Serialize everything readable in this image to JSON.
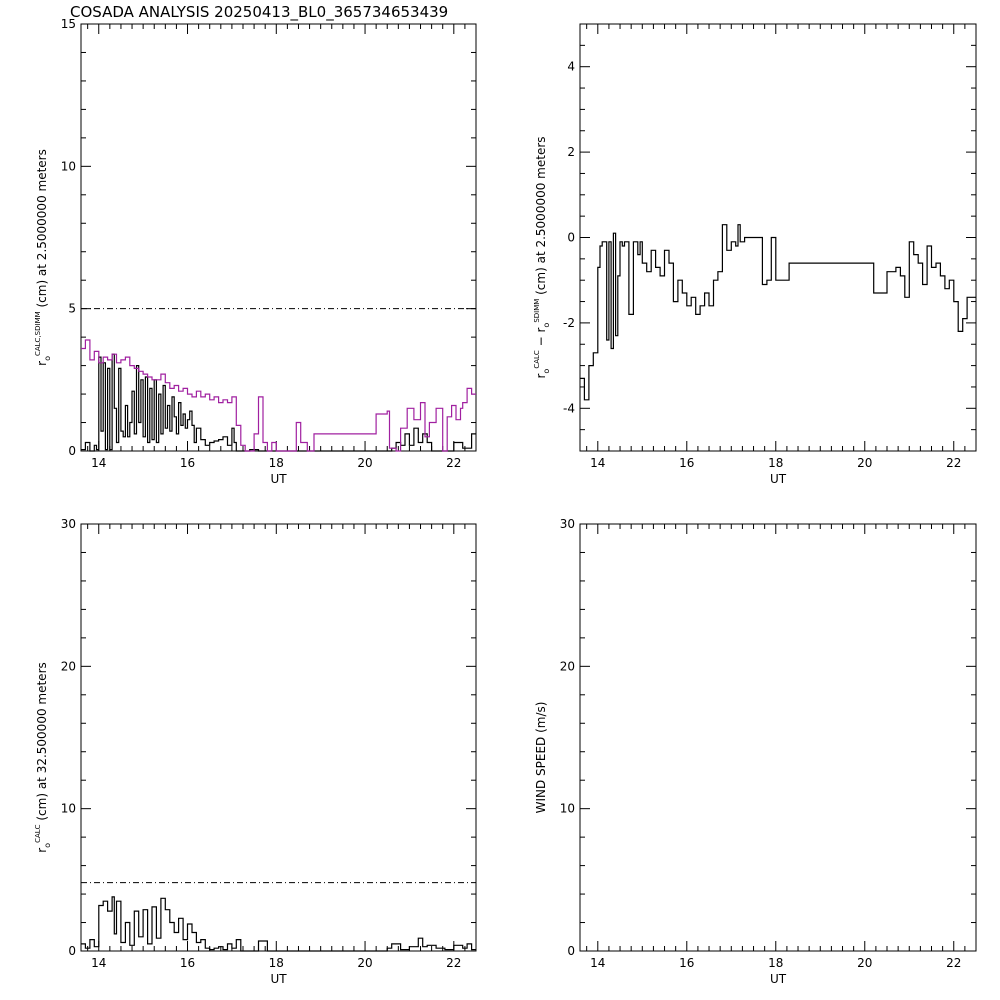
{
  "figure": {
    "title": "COSADA ANALYSIS 20250413_BL0_365734653439"
  },
  "colors": {
    "axis": "#000000",
    "series_black": "#000000",
    "series_magenta": "#a020a0"
  },
  "chart_data": [
    {
      "id": "top-left",
      "type": "line",
      "step": true,
      "xlabel": "UT",
      "ylabel_parts": {
        "r": "r",
        "sub": "o",
        "sup": "CALC,SDIMM",
        "rest": "(cm)  at  2.5000000 meters"
      },
      "xlim": [
        13.6,
        22.5
      ],
      "ylim": [
        0,
        15
      ],
      "xticks": [
        14,
        16,
        18,
        20,
        22
      ],
      "yticks": [
        0,
        5,
        10,
        15
      ],
      "reference_line": {
        "y": 5.0,
        "style": "dash-dot"
      },
      "series": [
        {
          "color": "#000000",
          "x": [
            13.6,
            13.7,
            13.8,
            13.9,
            13.95,
            14.0,
            14.05,
            14.1,
            14.15,
            14.2,
            14.25,
            14.3,
            14.35,
            14.4,
            14.45,
            14.5,
            14.55,
            14.6,
            14.65,
            14.7,
            14.75,
            14.8,
            14.85,
            14.9,
            14.95,
            15.0,
            15.05,
            15.1,
            15.15,
            15.2,
            15.25,
            15.3,
            15.35,
            15.4,
            15.45,
            15.5,
            15.55,
            15.6,
            15.65,
            15.7,
            15.75,
            15.8,
            15.85,
            15.9,
            15.95,
            16.0,
            16.05,
            16.1,
            16.15,
            16.2,
            16.3,
            16.4,
            16.5,
            16.6,
            16.7,
            16.8,
            16.9,
            17.0,
            17.05,
            17.1,
            17.2,
            17.4,
            17.6,
            17.65,
            17.75,
            17.8,
            18.0,
            18.2,
            18.4,
            18.6,
            18.8,
            18.85,
            20.5,
            20.6,
            20.7,
            20.8,
            20.9,
            21.0,
            21.1,
            21.2,
            21.3,
            21.4,
            21.5,
            21.6,
            21.8,
            22.0,
            22.2,
            22.4
          ],
          "y": [
            0.05,
            0.3,
            0.0,
            0.2,
            0.05,
            3.3,
            0.7,
            3.1,
            0.05,
            2.9,
            0.05,
            3.4,
            1.5,
            0.3,
            2.9,
            0.7,
            0.5,
            1.6,
            0.5,
            1.0,
            2.1,
            0.6,
            3.0,
            1.0,
            2.5,
            0.5,
            2.6,
            0.3,
            2.2,
            0.4,
            2.5,
            0.3,
            2.0,
            0.6,
            2.3,
            0.8,
            1.6,
            0.7,
            1.9,
            1.2,
            0.6,
            1.7,
            0.9,
            1.3,
            0.8,
            1.1,
            1.4,
            0.9,
            0.3,
            0.8,
            0.4,
            0.2,
            0.3,
            0.35,
            0.4,
            0.5,
            0.2,
            0.8,
            0.3,
            0.0,
            0.0,
            0.05,
            0.0,
            0.0,
            0.0,
            0.0,
            0.0,
            0.0,
            0.0,
            0.0,
            0.0,
            0.0,
            0.0,
            0.1,
            0.3,
            0.2,
            0.6,
            0.2,
            0.8,
            0.3,
            0.6,
            0.3,
            0.0,
            0.0,
            0.0,
            0.3,
            0.1,
            0.6
          ]
        },
        {
          "color": "#a020a0",
          "x": [
            13.6,
            13.7,
            13.8,
            13.9,
            14.0,
            14.1,
            14.2,
            14.3,
            14.4,
            14.5,
            14.6,
            14.7,
            14.8,
            14.9,
            15.0,
            15.1,
            15.2,
            15.3,
            15.4,
            15.5,
            15.6,
            15.7,
            15.8,
            15.9,
            16.0,
            16.1,
            16.2,
            16.3,
            16.4,
            16.5,
            16.6,
            16.7,
            16.8,
            16.9,
            17.0,
            17.1,
            17.2,
            17.3,
            17.4,
            17.5,
            17.6,
            17.7,
            17.8,
            17.9,
            18.0,
            18.3,
            18.45,
            18.55,
            18.7,
            18.85,
            20.2,
            20.25,
            20.5,
            20.55,
            20.7,
            20.8,
            20.95,
            21.1,
            21.25,
            21.35,
            21.45,
            21.6,
            21.75,
            21.85,
            21.95,
            22.05,
            22.15,
            22.2,
            22.3,
            22.4
          ],
          "y": [
            3.6,
            3.9,
            3.2,
            3.5,
            3.1,
            3.3,
            3.2,
            3.4,
            3.1,
            3.2,
            3.3,
            3.0,
            2.9,
            2.8,
            2.7,
            2.6,
            2.5,
            2.5,
            2.7,
            2.4,
            2.2,
            2.3,
            2.1,
            2.2,
            2.0,
            1.9,
            2.1,
            1.9,
            2.0,
            1.8,
            1.9,
            1.7,
            1.8,
            1.7,
            1.9,
            0.9,
            0.2,
            0.0,
            0.0,
            0.6,
            1.9,
            0.3,
            0.0,
            0.3,
            0.0,
            0.0,
            1.0,
            0.3,
            0.0,
            0.6,
            0.6,
            1.3,
            1.4,
            0.1,
            0.0,
            0.8,
            1.5,
            1.1,
            1.7,
            0.5,
            1.0,
            1.5,
            0.0,
            1.2,
            1.6,
            1.1,
            1.5,
            1.7,
            2.2,
            2.0
          ]
        }
      ]
    },
    {
      "id": "top-right",
      "type": "line",
      "step": true,
      "xlabel": "UT",
      "ylabel_parts": {
        "r": "r",
        "sub": "o",
        "sup": "CALC",
        "minus": "− r",
        "sub2": "o",
        "sup2": "SDIMM",
        "rest": "(cm)  at  2.5000000 meters"
      },
      "xlim": [
        13.6,
        22.5
      ],
      "ylim": [
        -5,
        5
      ],
      "xticks": [
        14,
        16,
        18,
        20,
        22
      ],
      "yticks": [
        -4,
        -2,
        0,
        2,
        4
      ],
      "series": [
        {
          "color": "#000000",
          "x": [
            13.6,
            13.7,
            13.8,
            13.9,
            14.0,
            14.05,
            14.1,
            14.2,
            14.25,
            14.3,
            14.35,
            14.4,
            14.45,
            14.5,
            14.55,
            14.6,
            14.7,
            14.8,
            14.9,
            14.95,
            15.0,
            15.1,
            15.2,
            15.3,
            15.4,
            15.5,
            15.6,
            15.7,
            15.8,
            15.9,
            16.0,
            16.1,
            16.2,
            16.3,
            16.4,
            16.5,
            16.6,
            16.7,
            16.8,
            16.9,
            17.0,
            17.1,
            17.15,
            17.2,
            17.3,
            17.4,
            17.5,
            17.6,
            17.7,
            17.8,
            17.9,
            18.0,
            18.3,
            18.4,
            18.6,
            18.8,
            18.85,
            20.2,
            20.5,
            20.7,
            20.8,
            20.9,
            21.0,
            21.1,
            21.2,
            21.3,
            21.4,
            21.5,
            21.6,
            21.7,
            21.8,
            21.9,
            22.0,
            22.1,
            22.2,
            22.3,
            22.4
          ],
          "y": [
            -3.3,
            -3.8,
            -3.0,
            -2.7,
            -0.7,
            -0.2,
            -0.1,
            -2.4,
            -0.1,
            -2.6,
            0.1,
            -2.3,
            -0.9,
            -0.1,
            -0.2,
            -0.1,
            -1.8,
            -0.1,
            -0.4,
            -0.1,
            -0.6,
            -0.8,
            -0.3,
            -0.7,
            -0.9,
            -0.3,
            -0.6,
            -1.5,
            -1.0,
            -1.3,
            -1.6,
            -1.4,
            -1.8,
            -1.6,
            -1.3,
            -1.6,
            -1.0,
            -0.8,
            0.3,
            -0.3,
            -0.1,
            -0.2,
            0.3,
            -0.1,
            0.0,
            0.0,
            0.0,
            0.0,
            -1.1,
            -1.0,
            0.0,
            -1.0,
            -0.6,
            -0.6,
            -0.6,
            -0.6,
            -0.6,
            -1.3,
            -0.8,
            -0.7,
            -0.9,
            -1.4,
            -0.1,
            -0.4,
            -0.6,
            -1.1,
            -0.2,
            -0.7,
            -0.6,
            -0.9,
            -1.2,
            -1.0,
            -1.5,
            -2.2,
            -1.9,
            -1.4,
            -1.4
          ]
        }
      ]
    },
    {
      "id": "bottom-left",
      "type": "line",
      "step": true,
      "xlabel": "UT",
      "ylabel_parts": {
        "r": "r",
        "sub": "o",
        "sup": "CALC",
        "rest": "(cm)  at  32.500000 meters"
      },
      "xlim": [
        13.6,
        22.5
      ],
      "ylim": [
        0,
        30
      ],
      "xticks": [
        14,
        16,
        18,
        20,
        22
      ],
      "yticks": [
        0,
        10,
        20,
        30
      ],
      "reference_line": {
        "y": 4.8,
        "style": "dash-dot"
      },
      "series": [
        {
          "color": "#000000",
          "x": [
            13.6,
            13.7,
            13.8,
            13.9,
            14.0,
            14.1,
            14.2,
            14.3,
            14.35,
            14.4,
            14.5,
            14.6,
            14.7,
            14.8,
            14.9,
            15.0,
            15.1,
            15.2,
            15.3,
            15.4,
            15.5,
            15.6,
            15.7,
            15.8,
            15.9,
            16.0,
            16.1,
            16.2,
            16.3,
            16.4,
            16.5,
            16.6,
            16.7,
            16.8,
            16.9,
            17.0,
            17.1,
            17.2,
            17.3,
            17.4,
            17.5,
            17.6,
            17.8,
            18.0,
            18.2,
            18.4,
            18.6,
            18.8,
            20.5,
            20.6,
            20.8,
            21.0,
            21.2,
            21.3,
            21.4,
            21.6,
            21.8,
            22.0,
            22.2,
            22.3,
            22.4
          ],
          "y": [
            0.5,
            0.2,
            0.8,
            0.3,
            3.2,
            3.5,
            2.8,
            3.8,
            1.2,
            3.5,
            0.6,
            2.0,
            0.4,
            2.8,
            1.0,
            2.9,
            0.5,
            3.1,
            0.9,
            3.7,
            2.9,
            2.0,
            1.3,
            2.3,
            0.8,
            1.9,
            1.3,
            0.6,
            0.8,
            0.2,
            0.1,
            0.2,
            0.3,
            0.1,
            0.5,
            0.2,
            0.8,
            0.0,
            0.0,
            0.0,
            0.0,
            0.7,
            0.0,
            0.0,
            0.0,
            0.0,
            0.0,
            0.0,
            0.2,
            0.5,
            0.1,
            0.3,
            0.9,
            0.3,
            0.4,
            0.2,
            0.1,
            0.4,
            0.2,
            0.5,
            0.1
          ]
        }
      ]
    },
    {
      "id": "bottom-right",
      "type": "line",
      "step": true,
      "xlabel": "UT",
      "ylabel": "WIND SPEED (m/s)",
      "xlim": [
        13.6,
        22.5
      ],
      "ylim": [
        0,
        30
      ],
      "xticks": [
        14,
        16,
        18,
        20,
        22
      ],
      "yticks": [
        0,
        10,
        20,
        30
      ],
      "series": []
    }
  ]
}
